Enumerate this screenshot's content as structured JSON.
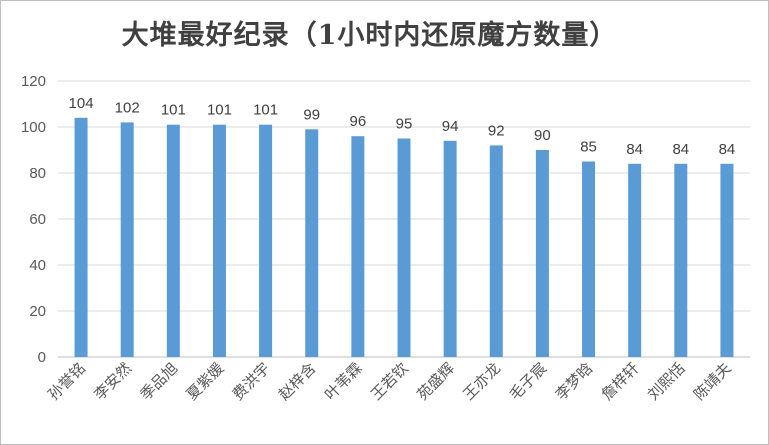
{
  "chart_data": {
    "type": "bar",
    "title": "大堆最好纪录（1小时内还原魔方数量）",
    "xlabel": "",
    "ylabel": "",
    "ylim": [
      0,
      120
    ],
    "yticks": [
      0,
      20,
      40,
      60,
      80,
      100,
      120
    ],
    "grid": true,
    "categories": [
      "孙誉铭",
      "李安然",
      "季品旭",
      "夏紫媛",
      "费洪宇",
      "赵梓含",
      "叶苇霖",
      "王若钦",
      "苑盛辉",
      "王亦龙",
      "毛子宸",
      "李梦晗",
      "詹梓轩",
      "刘熙恬",
      "陈靖夫"
    ],
    "values": [
      104,
      102,
      101,
      101,
      101,
      99,
      96,
      95,
      94,
      92,
      90,
      85,
      84,
      84,
      84
    ],
    "bar_color": "#5b9bd5"
  }
}
